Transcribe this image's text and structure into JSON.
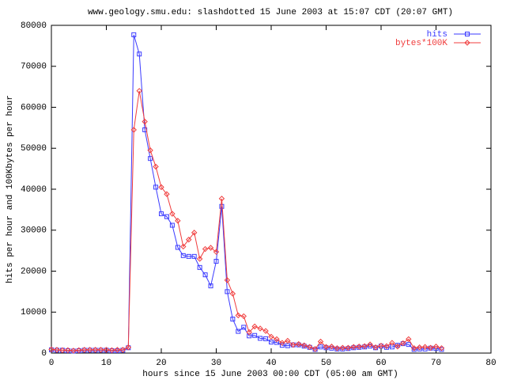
{
  "chart_data": {
    "type": "line",
    "title": "www.geology.smu.edu: slashdotted 15 June 2003 at 15:07 CDT (20:07 GMT)",
    "x_label": "hours since 15 June 2003 00:00 CDT  (05:00 am GMT)",
    "y_label": "hits per hour and 100Kbytes per hour",
    "x": [
      0,
      1,
      2,
      3,
      4,
      5,
      6,
      7,
      8,
      9,
      10,
      11,
      12,
      13,
      14,
      15,
      16,
      17,
      18,
      19,
      20,
      21,
      22,
      23,
      24,
      25,
      26,
      27,
      28,
      29,
      30,
      31,
      32,
      33,
      34,
      35,
      36,
      37,
      38,
      39,
      40,
      41,
      42,
      43,
      44,
      45,
      46,
      47,
      48,
      49,
      50,
      51,
      52,
      53,
      54,
      55,
      56,
      57,
      58,
      59,
      60,
      61,
      62,
      63,
      64,
      65,
      66,
      67,
      68,
      69,
      70,
      71
    ],
    "series": [
      {
        "name": "hits",
        "color": "#3a3aff",
        "marker": "square",
        "values": [
          800,
          700,
          700,
          600,
          500,
          600,
          700,
          700,
          700,
          700,
          700,
          600,
          600,
          700,
          1300,
          77700,
          73000,
          54500,
          47500,
          40500,
          34000,
          33300,
          31200,
          25800,
          23800,
          23600,
          23600,
          20900,
          19100,
          16400,
          22400,
          35800,
          15000,
          8300,
          5300,
          6300,
          4200,
          4300,
          3600,
          3500,
          2700,
          2600,
          1900,
          1800,
          2000,
          2000,
          1700,
          1400,
          900,
          1500,
          1300,
          1200,
          1000,
          1000,
          1100,
          1300,
          1400,
          1500,
          1700,
          1300,
          1700,
          1400,
          1500,
          1900,
          2300,
          2100,
          900,
          1000,
          1000,
          1200,
          1100,
          900
        ]
      },
      {
        "name": "bytes*100K",
        "color": "#f03c3c",
        "marker": "diamond",
        "values": [
          900,
          800,
          700,
          700,
          600,
          700,
          800,
          800,
          800,
          800,
          800,
          700,
          800,
          800,
          1400,
          54500,
          64000,
          56500,
          49500,
          45500,
          40500,
          38800,
          34000,
          32300,
          26000,
          27700,
          29400,
          23000,
          25400,
          25700,
          24700,
          37700,
          17800,
          14500,
          9200,
          9000,
          5100,
          6500,
          6000,
          5400,
          4000,
          3400,
          2500,
          3000,
          2000,
          2200,
          1900,
          1500,
          1000,
          2800,
          1500,
          1600,
          1200,
          1300,
          1300,
          1500,
          1600,
          1700,
          2100,
          1400,
          1800,
          1700,
          2500,
          1600,
          2400,
          3400,
          1200,
          1400,
          1500,
          1300,
          1600,
          1200
        ]
      }
    ],
    "xlim": [
      0,
      80
    ],
    "xticks": [
      0,
      10,
      20,
      30,
      40,
      50,
      60,
      70,
      80
    ],
    "ylim": [
      0,
      80000
    ],
    "yticks": [
      0,
      10000,
      20000,
      30000,
      40000,
      50000,
      60000,
      70000,
      80000
    ],
    "grid": false,
    "legend": "top-right"
  }
}
